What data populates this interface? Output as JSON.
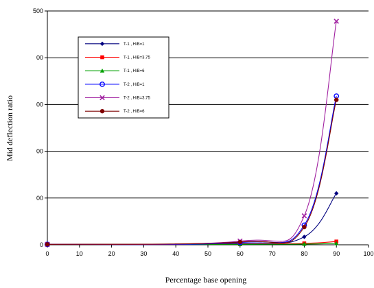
{
  "chart_data": {
    "type": "line",
    "title": "",
    "xlabel": "Percentage base opening",
    "ylabel": "Mid deflection ratio",
    "xlim": [
      0,
      100
    ],
    "ylim": [
      0,
      500
    ],
    "x_ticks": [
      "0",
      "10",
      "20",
      "30",
      "40",
      "50",
      "60",
      "70",
      "80",
      "90",
      "100"
    ],
    "y_ticks": [
      "0",
      "00",
      "00",
      "00",
      "00",
      "500"
    ],
    "grid": "horizontal",
    "legend_position": "top-left",
    "series": [
      {
        "name": "T-1 , H/B=1",
        "color": "#00007f",
        "marker": "diamond",
        "x": [
          0,
          60,
          80,
          90
        ],
        "y": [
          1,
          3,
          17,
          110
        ]
      },
      {
        "name": "T-1 , H/B=3.75",
        "color": "#ff0000",
        "marker": "square",
        "x": [
          0,
          60,
          80,
          90
        ],
        "y": [
          1,
          1.5,
          3,
          7
        ]
      },
      {
        "name": "T-1 , H/B=6",
        "color": "#00a000",
        "marker": "triangle",
        "x": [
          0,
          60,
          80,
          90
        ],
        "y": [
          1,
          1,
          1.5,
          3
        ]
      },
      {
        "name": "T-2 , H/B=1",
        "color": "#0000ff",
        "marker": "circle",
        "x": [
          0,
          60,
          80,
          90
        ],
        "y": [
          1,
          5,
          42,
          318
        ]
      },
      {
        "name": "T-2 , H/B=3.75",
        "color": "#a020a0",
        "marker": "x",
        "x": [
          0,
          60,
          80,
          90
        ],
        "y": [
          1,
          8,
          62,
          478
        ]
      },
      {
        "name": "T-2 , H/B=6",
        "color": "#7f0000",
        "marker": "dot",
        "x": [
          0,
          60,
          80,
          90
        ],
        "y": [
          1,
          6,
          38,
          310
        ]
      }
    ]
  }
}
